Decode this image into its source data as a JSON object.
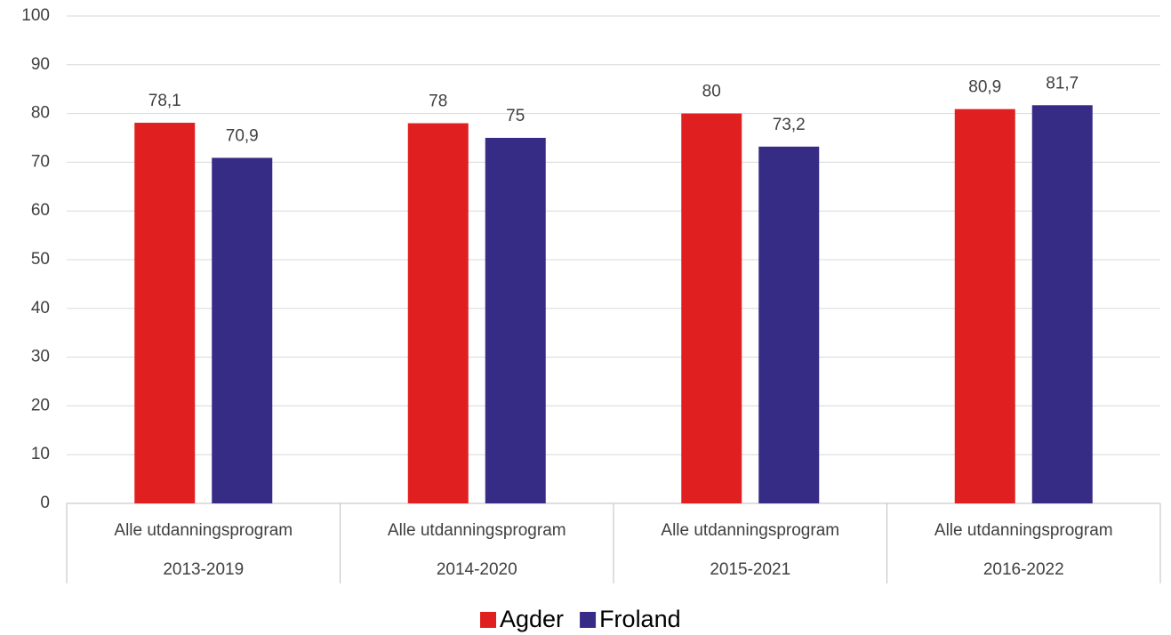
{
  "chart_data": {
    "type": "bar",
    "categories": [
      [
        "Alle utdanningsprogram",
        "2013-2019"
      ],
      [
        "Alle utdanningsprogram",
        "2014-2020"
      ],
      [
        "Alle utdanningsprogram",
        "2015-2021"
      ],
      [
        "Alle utdanningsprogram",
        "2016-2022"
      ]
    ],
    "series": [
      {
        "name": "Agder",
        "color": "#e02020",
        "values": [
          78.1,
          78,
          80,
          80.9
        ],
        "value_labels": [
          "78,1",
          "78",
          "80",
          "80,9"
        ]
      },
      {
        "name": "Froland",
        "color": "#372c85",
        "values": [
          70.9,
          75,
          73.2,
          81.7
        ],
        "value_labels": [
          "70,9",
          "75",
          "73,2",
          "81,7"
        ]
      }
    ],
    "ylim": [
      0,
      100
    ],
    "yticks": [
      0,
      10,
      20,
      30,
      40,
      50,
      60,
      70,
      80,
      90,
      100
    ],
    "grid": true,
    "legend": "bottom"
  }
}
